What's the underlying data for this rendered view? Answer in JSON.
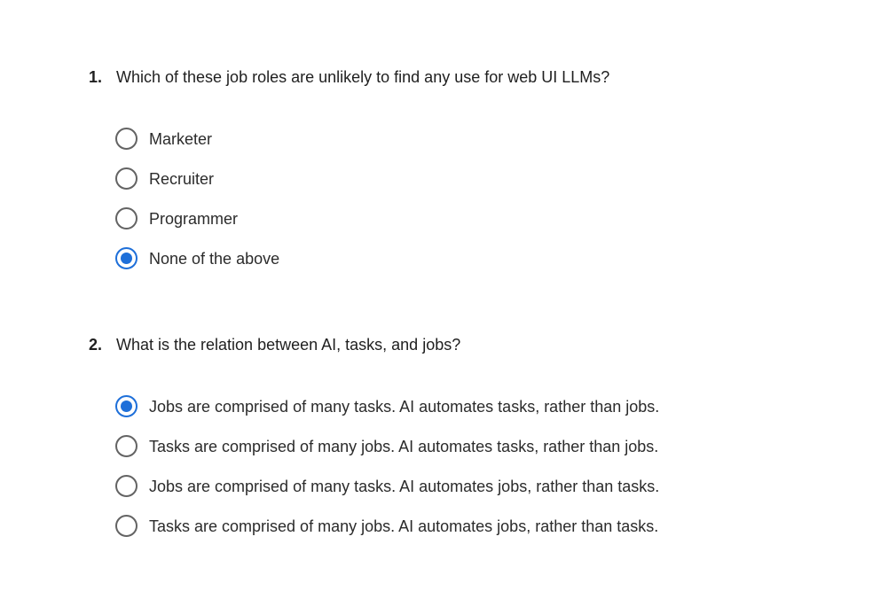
{
  "questions": [
    {
      "number": "1.",
      "text": "Which of these job roles are unlikely to find any use for web UI LLMs?",
      "options": [
        {
          "label": "Marketer",
          "selected": false
        },
        {
          "label": "Recruiter",
          "selected": false
        },
        {
          "label": "Programmer",
          "selected": false
        },
        {
          "label": "None of the above",
          "selected": true
        }
      ]
    },
    {
      "number": "2.",
      "text": "What is the relation between AI, tasks, and jobs?",
      "options": [
        {
          "label": "Jobs are comprised of many tasks. AI automates tasks, rather than jobs.",
          "selected": true
        },
        {
          "label": "Tasks are comprised of many jobs. AI automates tasks, rather than jobs.",
          "selected": false
        },
        {
          "label": "Jobs are comprised of many tasks. AI automates jobs, rather than tasks.",
          "selected": false
        },
        {
          "label": "Tasks are comprised of many jobs. AI automates jobs, rather than tasks.",
          "selected": false
        }
      ]
    }
  ],
  "colors": {
    "accent": "#1e6fd9",
    "radio_border": "#636363",
    "text": "#1f1f1f"
  }
}
